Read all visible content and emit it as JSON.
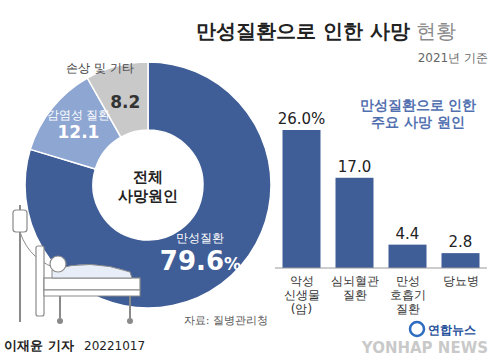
{
  "header": {
    "title": "만성질환으로 인한 사망",
    "title_suffix": "현황",
    "subtitle": "2021년 기준"
  },
  "chart_data": [
    {
      "type": "pie",
      "title": "전체\n사망원인",
      "categories": [
        "만성질환",
        "감염성 질환",
        "손상 및 기타"
      ],
      "values": [
        79.6,
        12.1,
        8.2
      ],
      "value_labels": [
        "79.6%",
        "12.1",
        "8.2"
      ],
      "colors": [
        "#3f5d97",
        "#8ea6d2",
        "#c9c9c9"
      ],
      "data_labels": true
    },
    {
      "type": "bar",
      "title": "만성질환으로 인한\n주요 사망 원인",
      "categories": [
        "악성\n신생물\n(암)",
        "심뇌혈관\n질환",
        "만성\n호흡기\n질환",
        "당뇨병"
      ],
      "values": [
        26.0,
        17.0,
        4.4,
        2.8
      ],
      "value_labels": [
        "26.0%",
        "17.0",
        "4.4",
        "2.8"
      ],
      "color": "#3f5d97",
      "ylim": [
        0,
        26
      ],
      "tick_labels": false,
      "data_labels": true
    }
  ],
  "footer": {
    "source": "자료: 질병관리청",
    "credit": "이재윤 기자",
    "date": "20221017",
    "logo": "연합뉴스",
    "watermark": "YONHAP NEWS"
  }
}
